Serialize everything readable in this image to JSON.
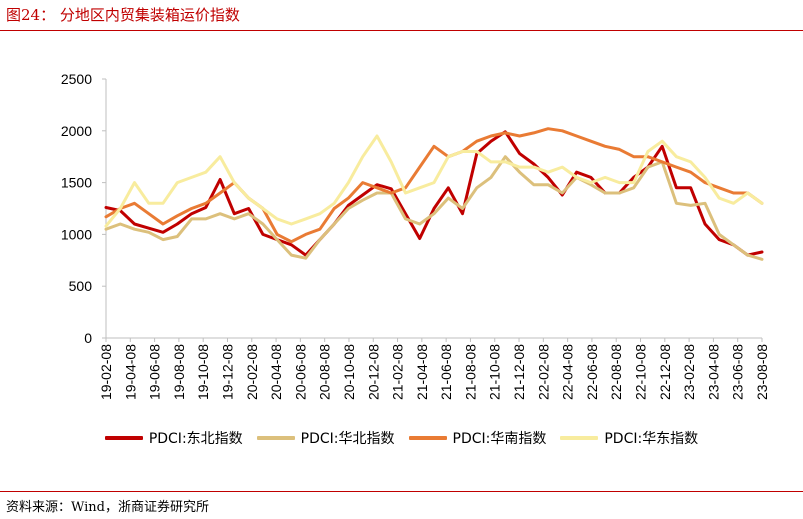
{
  "figure": {
    "title": "图24：  分地区内贸集装箱运价指数",
    "source": "资料来源：Wind，浙商证券研究所"
  },
  "chart_data": {
    "type": "line",
    "title": "",
    "xlabel": "",
    "ylabel": "",
    "ylim": [
      0,
      2500
    ],
    "yticks": [
      "0",
      "500",
      "1000",
      "1500",
      "2000",
      "2500"
    ],
    "xticks": [
      "19-02-08",
      "19-04-08",
      "19-06-08",
      "19-08-08",
      "19-10-08",
      "19-12-08",
      "20-02-08",
      "20-04-08",
      "20-06-08",
      "20-08-08",
      "20-10-08",
      "20-12-08",
      "21-02-08",
      "21-04-08",
      "21-06-08",
      "21-08-08",
      "21-10-08",
      "21-12-08",
      "22-02-08",
      "22-04-08",
      "22-06-08",
      "22-08-08",
      "22-10-08",
      "22-12-08",
      "23-02-08",
      "23-04-08",
      "23-06-08",
      "23-08-08"
    ],
    "grid": false,
    "legend_position": "bottom",
    "series": [
      {
        "name": "PDCI:东北指数",
        "color": "#c00000",
        "values": [
          1260,
          1230,
          1100,
          1060,
          1020,
          1100,
          1200,
          1260,
          1530,
          1200,
          1250,
          1000,
          950,
          900,
          800,
          950,
          1100,
          1280,
          1380,
          1480,
          1440,
          1200,
          960,
          1250,
          1450,
          1200,
          1780,
          1900,
          1990,
          1780,
          1680,
          1550,
          1380,
          1600,
          1550,
          1400,
          1400,
          1550,
          1650,
          1850,
          1450,
          1450,
          1100,
          950,
          900,
          800,
          830
        ]
      },
      {
        "name": "PDCI:华北指数",
        "color": "#dcc07c",
        "values": [
          1050,
          1100,
          1050,
          1020,
          950,
          980,
          1150,
          1150,
          1200,
          1150,
          1200,
          1100,
          950,
          800,
          770,
          950,
          1100,
          1250,
          1330,
          1400,
          1400,
          1150,
          1100,
          1200,
          1350,
          1250,
          1450,
          1550,
          1750,
          1600,
          1480,
          1480,
          1400,
          1550,
          1480,
          1400,
          1400,
          1450,
          1650,
          1700,
          1300,
          1280,
          1300,
          1000,
          900,
          800,
          760
        ]
      },
      {
        "name": "PDCI:华南指数",
        "color": "#e97b34",
        "values": [
          1170,
          1250,
          1300,
          1200,
          1100,
          1180,
          1250,
          1300,
          1400,
          1500,
          1350,
          1250,
          1000,
          930,
          1000,
          1050,
          1250,
          1350,
          1500,
          1450,
          1400,
          1450,
          1650,
          1850,
          1750,
          1800,
          1900,
          1950,
          1980,
          1950,
          1980,
          2020,
          2000,
          1950,
          1900,
          1850,
          1820,
          1750,
          1750,
          1700,
          1650,
          1600,
          1500,
          1450,
          1400,
          1400,
          1300
        ]
      },
      {
        "name": "PDCI:华东指数",
        "color": "#f8ec9e",
        "values": [
          1080,
          1250,
          1500,
          1300,
          1300,
          1500,
          1550,
          1600,
          1750,
          1500,
          1350,
          1250,
          1150,
          1100,
          1150,
          1200,
          1300,
          1500,
          1750,
          1950,
          1700,
          1400,
          1450,
          1500,
          1750,
          1800,
          1800,
          1700,
          1700,
          1650,
          1650,
          1600,
          1650,
          1550,
          1500,
          1550,
          1500,
          1500,
          1800,
          1900,
          1750,
          1700,
          1550,
          1350,
          1300,
          1400,
          1300
        ]
      }
    ]
  }
}
